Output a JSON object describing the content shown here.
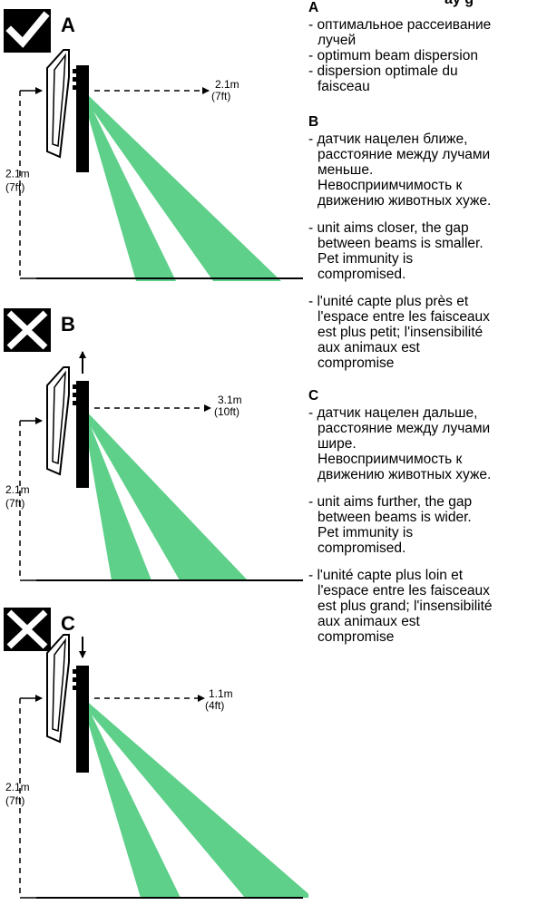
{
  "title_fragment": "ay    g",
  "colors": {
    "beam": "#5ed08a",
    "ink": "#000000"
  },
  "panels": [
    {
      "letter": "A",
      "status_icon": "checkmark-icon",
      "range_m": "2.1m",
      "range_ft": "(7ft)",
      "height_m": "2.1m",
      "height_ft": "(7ft)",
      "arrow": "none"
    },
    {
      "letter": "B",
      "status_icon": "cross-icon",
      "range_m": "3.1m",
      "range_ft": "(10ft)",
      "height_m": "2.1m",
      "height_ft": "(7ft)",
      "arrow": "up"
    },
    {
      "letter": "C",
      "status_icon": "cross-icon",
      "range_m": "1.1m",
      "range_ft": "(4ft)",
      "height_m": "2.1m",
      "height_ft": "(7ft)",
      "arrow": "down"
    }
  ],
  "legend": {
    "A": {
      "letter": "A",
      "ru": [
        "- оптимальное рассеивание",
        "лучей"
      ],
      "en": [
        "- optimum beam dispersion"
      ],
      "fr": [
        "- dispersion optimale du",
        "faisceau"
      ]
    },
    "B": {
      "letter": "B",
      "ru": [
        "- датчик нацелен ближе,",
        "расстояние между лучами",
        "меньше.",
        "Невосприимчимость к",
        "движению животных хуже."
      ],
      "en": [
        "- unit aims closer, the gap",
        "between beams is smaller.",
        "Pet immunity is",
        "compromised."
      ],
      "fr": [
        "- l'unité capte plus près et",
        "l'espace entre les faisceaux",
        "est plus petit; l'insensibilité",
        "aux animaux est",
        "compromise"
      ]
    },
    "C": {
      "letter": "C",
      "ru": [
        "- датчик нацелен дальше,",
        "расстояние между лучами",
        "шире.",
        "Невосприимчимость к",
        "движению животных хуже."
      ],
      "en": [
        "- unit aims further, the gap",
        "between beams is wider.",
        "Pet immunity is",
        "compromised."
      ],
      "fr": [
        "- l'unité capte plus loin et",
        "l'espace entre les faisceaux",
        "est plus grand; l'insensibilité",
        "aux animaux est",
        "compromise"
      ]
    }
  }
}
